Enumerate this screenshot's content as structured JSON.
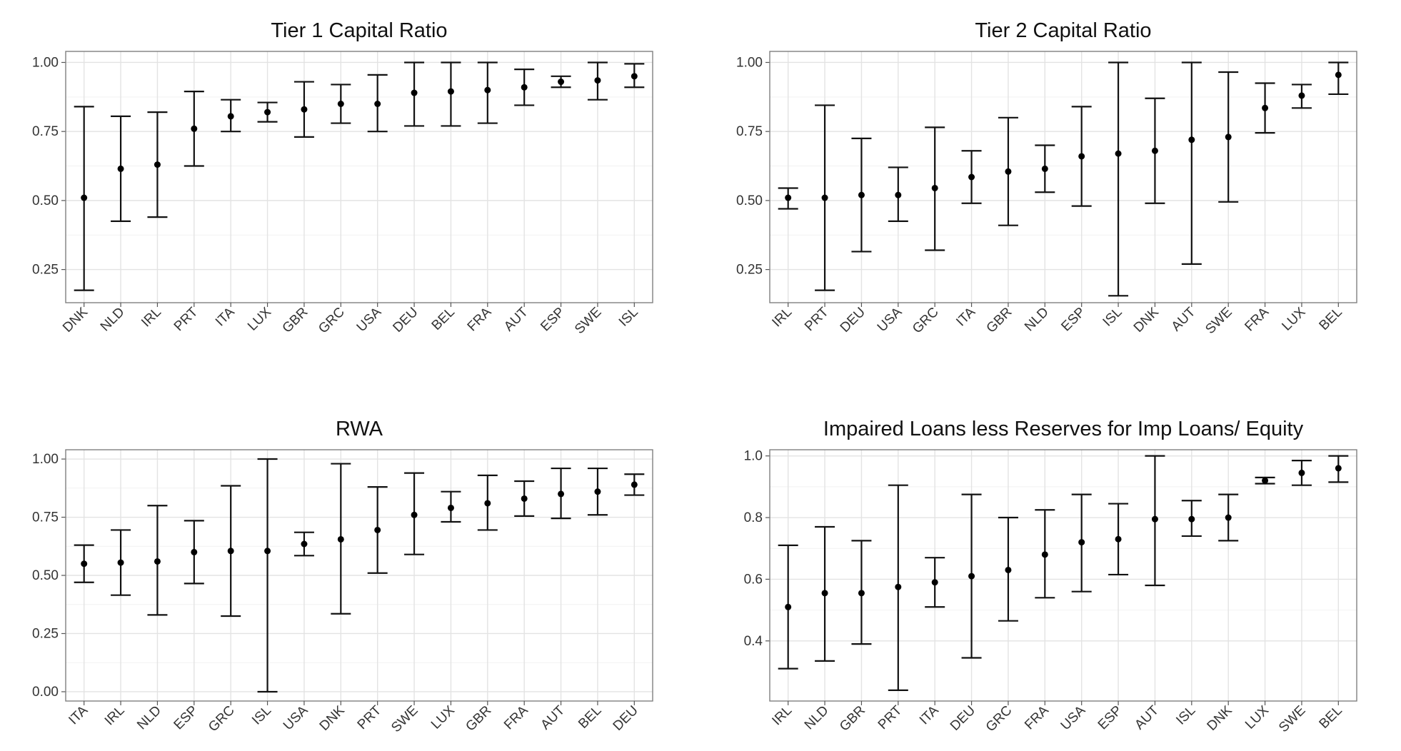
{
  "chart_data": [
    {
      "type": "errorbar",
      "title": "Tier 1 Capital Ratio",
      "xlabel": "",
      "ylabel": "",
      "ylim": [
        0.13,
        1.04
      ],
      "yticks": [
        "0.25",
        "0.50",
        "0.75",
        "1.00"
      ],
      "grid": true,
      "categories": [
        "DNK",
        "NLD",
        "IRL",
        "PRT",
        "ITA",
        "LUX",
        "GBR",
        "GRC",
        "USA",
        "DEU",
        "BEL",
        "FRA",
        "AUT",
        "ESP",
        "SWE",
        "ISL"
      ],
      "points": [
        {
          "label": "DNK",
          "estimate": 0.51,
          "low": 0.175,
          "high": 0.84
        },
        {
          "label": "NLD",
          "estimate": 0.615,
          "low": 0.425,
          "high": 0.805
        },
        {
          "label": "IRL",
          "estimate": 0.63,
          "low": 0.44,
          "high": 0.82
        },
        {
          "label": "PRT",
          "estimate": 0.76,
          "low": 0.625,
          "high": 0.895
        },
        {
          "label": "ITA",
          "estimate": 0.805,
          "low": 0.75,
          "high": 0.865
        },
        {
          "label": "LUX",
          "estimate": 0.82,
          "low": 0.785,
          "high": 0.855
        },
        {
          "label": "GBR",
          "estimate": 0.83,
          "low": 0.73,
          "high": 0.93
        },
        {
          "label": "GRC",
          "estimate": 0.85,
          "low": 0.78,
          "high": 0.92
        },
        {
          "label": "USA",
          "estimate": 0.85,
          "low": 0.75,
          "high": 0.955
        },
        {
          "label": "DEU",
          "estimate": 0.89,
          "low": 0.77,
          "high": 1.0
        },
        {
          "label": "BEL",
          "estimate": 0.895,
          "low": 0.77,
          "high": 1.0
        },
        {
          "label": "FRA",
          "estimate": 0.9,
          "low": 0.78,
          "high": 1.0
        },
        {
          "label": "AUT",
          "estimate": 0.91,
          "low": 0.845,
          "high": 0.975
        },
        {
          "label": "ESP",
          "estimate": 0.93,
          "low": 0.91,
          "high": 0.95
        },
        {
          "label": "SWE",
          "estimate": 0.935,
          "low": 0.865,
          "high": 1.0
        },
        {
          "label": "ISL",
          "estimate": 0.95,
          "low": 0.91,
          "high": 0.995
        }
      ]
    },
    {
      "type": "errorbar",
      "title": "Tier 2 Capital Ratio",
      "xlabel": "",
      "ylabel": "",
      "ylim": [
        0.13,
        1.04
      ],
      "yticks": [
        "0.25",
        "0.50",
        "0.75",
        "1.00"
      ],
      "grid": true,
      "categories": [
        "IRL",
        "PRT",
        "DEU",
        "USA",
        "GRC",
        "ITA",
        "GBR",
        "NLD",
        "ESP",
        "ISL",
        "DNK",
        "AUT",
        "SWE",
        "FRA",
        "LUX",
        "BEL"
      ],
      "points": [
        {
          "label": "IRL",
          "estimate": 0.51,
          "low": 0.47,
          "high": 0.545
        },
        {
          "label": "PRT",
          "estimate": 0.51,
          "low": 0.175,
          "high": 0.845
        },
        {
          "label": "DEU",
          "estimate": 0.52,
          "low": 0.315,
          "high": 0.725
        },
        {
          "label": "USA",
          "estimate": 0.52,
          "low": 0.425,
          "high": 0.62
        },
        {
          "label": "GRC",
          "estimate": 0.545,
          "low": 0.32,
          "high": 0.765
        },
        {
          "label": "ITA",
          "estimate": 0.585,
          "low": 0.49,
          "high": 0.68
        },
        {
          "label": "GBR",
          "estimate": 0.605,
          "low": 0.41,
          "high": 0.8
        },
        {
          "label": "NLD",
          "estimate": 0.615,
          "low": 0.53,
          "high": 0.7
        },
        {
          "label": "ESP",
          "estimate": 0.66,
          "low": 0.48,
          "high": 0.84
        },
        {
          "label": "ISL",
          "estimate": 0.67,
          "low": 0.155,
          "high": 1.0
        },
        {
          "label": "DNK",
          "estimate": 0.68,
          "low": 0.49,
          "high": 0.87
        },
        {
          "label": "AUT",
          "estimate": 0.72,
          "low": 0.27,
          "high": 1.0
        },
        {
          "label": "SWE",
          "estimate": 0.73,
          "low": 0.495,
          "high": 0.965
        },
        {
          "label": "FRA",
          "estimate": 0.835,
          "low": 0.745,
          "high": 0.925
        },
        {
          "label": "LUX",
          "estimate": 0.88,
          "low": 0.835,
          "high": 0.92
        },
        {
          "label": "BEL",
          "estimate": 0.955,
          "low": 0.885,
          "high": 1.0
        }
      ]
    },
    {
      "type": "errorbar",
      "title": "RWA",
      "xlabel": "",
      "ylabel": "",
      "ylim": [
        -0.04,
        1.04
      ],
      "yticks": [
        "0.00",
        "0.25",
        "0.50",
        "0.75",
        "1.00"
      ],
      "grid": true,
      "categories": [
        "ITA",
        "IRL",
        "NLD",
        "ESP",
        "GRC",
        "ISL",
        "USA",
        "DNK",
        "PRT",
        "SWE",
        "LUX",
        "GBR",
        "FRA",
        "AUT",
        "BEL",
        "DEU"
      ],
      "points": [
        {
          "label": "ITA",
          "estimate": 0.55,
          "low": 0.47,
          "high": 0.63
        },
        {
          "label": "IRL",
          "estimate": 0.555,
          "low": 0.415,
          "high": 0.695
        },
        {
          "label": "NLD",
          "estimate": 0.56,
          "low": 0.33,
          "high": 0.8
        },
        {
          "label": "ESP",
          "estimate": 0.6,
          "low": 0.465,
          "high": 0.735
        },
        {
          "label": "GRC",
          "estimate": 0.605,
          "low": 0.325,
          "high": 0.885
        },
        {
          "label": "ISL",
          "estimate": 0.605,
          "low": 0.0,
          "high": 1.0
        },
        {
          "label": "USA",
          "estimate": 0.635,
          "low": 0.585,
          "high": 0.685
        },
        {
          "label": "DNK",
          "estimate": 0.655,
          "low": 0.335,
          "high": 0.98
        },
        {
          "label": "PRT",
          "estimate": 0.695,
          "low": 0.51,
          "high": 0.88
        },
        {
          "label": "SWE",
          "estimate": 0.76,
          "low": 0.59,
          "high": 0.94
        },
        {
          "label": "LUX",
          "estimate": 0.79,
          "low": 0.73,
          "high": 0.86
        },
        {
          "label": "GBR",
          "estimate": 0.81,
          "low": 0.695,
          "high": 0.93
        },
        {
          "label": "FRA",
          "estimate": 0.83,
          "low": 0.755,
          "high": 0.905
        },
        {
          "label": "AUT",
          "estimate": 0.85,
          "low": 0.745,
          "high": 0.96
        },
        {
          "label": "BEL",
          "estimate": 0.86,
          "low": 0.76,
          "high": 0.96
        },
        {
          "label": "DEU",
          "estimate": 0.89,
          "low": 0.845,
          "high": 0.935
        }
      ]
    },
    {
      "type": "errorbar",
      "title": "Impaired Loans less Reserves for Imp Loans/ Equity",
      "xlabel": "",
      "ylabel": "",
      "ylim": [
        0.205,
        1.02
      ],
      "yticks": [
        "0.4",
        "0.6",
        "0.8",
        "1.0"
      ],
      "grid": true,
      "categories": [
        "IRL",
        "NLD",
        "GBR",
        "PRT",
        "ITA",
        "DEU",
        "GRC",
        "FRA",
        "USA",
        "ESP",
        "AUT",
        "ISL",
        "DNK",
        "LUX",
        "SWE",
        "BEL"
      ],
      "points": [
        {
          "label": "IRL",
          "estimate": 0.51,
          "low": 0.31,
          "high": 0.71
        },
        {
          "label": "NLD",
          "estimate": 0.555,
          "low": 0.335,
          "high": 0.77
        },
        {
          "label": "GBR",
          "estimate": 0.555,
          "low": 0.39,
          "high": 0.725
        },
        {
          "label": "PRT",
          "estimate": 0.575,
          "low": 0.24,
          "high": 0.905
        },
        {
          "label": "ITA",
          "estimate": 0.59,
          "low": 0.51,
          "high": 0.67
        },
        {
          "label": "DEU",
          "estimate": 0.61,
          "low": 0.345,
          "high": 0.875
        },
        {
          "label": "GRC",
          "estimate": 0.63,
          "low": 0.465,
          "high": 0.8
        },
        {
          "label": "FRA",
          "estimate": 0.68,
          "low": 0.54,
          "high": 0.825
        },
        {
          "label": "USA",
          "estimate": 0.72,
          "low": 0.56,
          "high": 0.875
        },
        {
          "label": "ESP",
          "estimate": 0.73,
          "low": 0.615,
          "high": 0.845
        },
        {
          "label": "AUT",
          "estimate": 0.795,
          "low": 0.58,
          "high": 1.0
        },
        {
          "label": "ISL",
          "estimate": 0.795,
          "low": 0.74,
          "high": 0.855
        },
        {
          "label": "DNK",
          "estimate": 0.8,
          "low": 0.725,
          "high": 0.875
        },
        {
          "label": "LUX",
          "estimate": 0.92,
          "low": 0.91,
          "high": 0.93
        },
        {
          "label": "SWE",
          "estimate": 0.945,
          "low": 0.905,
          "high": 0.985
        },
        {
          "label": "BEL",
          "estimate": 0.96,
          "low": 0.915,
          "high": 1.0
        }
      ]
    }
  ],
  "style": {
    "panel_background": "#ffffff",
    "panel_border": "#7f7f7f",
    "grid_color": "#e3e3e3",
    "minor_grid_color": "#f2f2f2",
    "bar_color": "#111111",
    "point_color": "#000000",
    "text_color": "#333333"
  }
}
